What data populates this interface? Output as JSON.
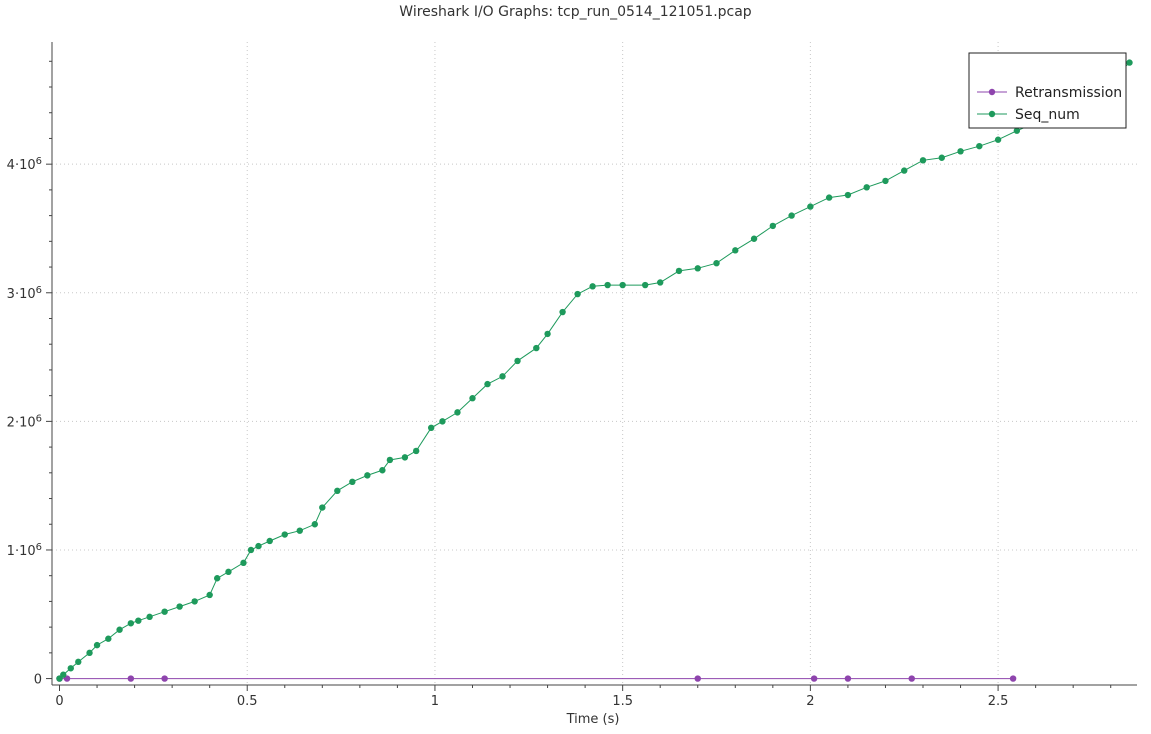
{
  "chart_data": {
    "type": "line",
    "title": "Wireshark I/O Graphs: tcp_run_0514_121051.pcap",
    "xlabel": "Time (s)",
    "ylabel": "",
    "xlim": [
      -0.02,
      2.87
    ],
    "ylim": [
      -50000,
      4950000
    ],
    "x_ticks": [
      0,
      0.5,
      1,
      1.5,
      2,
      2.5
    ],
    "x_tick_labels": [
      "0",
      "0.5",
      "1",
      "1.5",
      "2",
      "2.5"
    ],
    "y_ticks": [
      0,
      1000000,
      2000000,
      3000000,
      4000000
    ],
    "y_tick_labels": [
      {
        "base": "0",
        "exp": ""
      },
      {
        "base": "1·10",
        "exp": "6"
      },
      {
        "base": "2·10",
        "exp": "6"
      },
      {
        "base": "3·10",
        "exp": "6"
      },
      {
        "base": "4·10",
        "exp": "6"
      }
    ],
    "grid": true,
    "legend_position": "top-right",
    "series": [
      {
        "name": "Retransmission",
        "color": "#8e44ad",
        "x": [
          0.0,
          0.02,
          0.19,
          0.28,
          1.7,
          2.01,
          2.1,
          2.27,
          2.54
        ],
        "y": [
          0,
          0,
          0,
          0,
          0,
          0,
          0,
          0,
          0
        ]
      },
      {
        "name": "Seq_num",
        "color": "#1e9a5c",
        "x": [
          0.0,
          0.01,
          0.03,
          0.05,
          0.08,
          0.1,
          0.13,
          0.16,
          0.19,
          0.21,
          0.24,
          0.28,
          0.32,
          0.36,
          0.4,
          0.42,
          0.45,
          0.49,
          0.51,
          0.53,
          0.56,
          0.6,
          0.64,
          0.68,
          0.7,
          0.74,
          0.78,
          0.82,
          0.86,
          0.88,
          0.92,
          0.95,
          0.99,
          1.02,
          1.06,
          1.1,
          1.14,
          1.18,
          1.22,
          1.27,
          1.3,
          1.34,
          1.38,
          1.42,
          1.46,
          1.5,
          1.56,
          1.6,
          1.65,
          1.7,
          1.75,
          1.8,
          1.85,
          1.9,
          1.95,
          2.0,
          2.05,
          2.1,
          2.15,
          2.2,
          2.25,
          2.3,
          2.35,
          2.4,
          2.45,
          2.5,
          2.55,
          2.6,
          2.65,
          2.7,
          2.75,
          2.8,
          2.85
        ],
        "y": [
          0,
          30000,
          80000,
          130000,
          200000,
          260000,
          310000,
          380000,
          430000,
          450000,
          480000,
          520000,
          560000,
          600000,
          650000,
          780000,
          830000,
          900000,
          1000000,
          1030000,
          1070000,
          1120000,
          1150000,
          1200000,
          1330000,
          1460000,
          1530000,
          1580000,
          1620000,
          1700000,
          1720000,
          1770000,
          1950000,
          2000000,
          2070000,
          2180000,
          2290000,
          2350000,
          2470000,
          2570000,
          2680000,
          2850000,
          2990000,
          3050000,
          3060000,
          3060000,
          3060000,
          3080000,
          3170000,
          3190000,
          3230000,
          3330000,
          3420000,
          3520000,
          3600000,
          3670000,
          3740000,
          3760000,
          3820000,
          3870000,
          3950000,
          4030000,
          4050000,
          4100000,
          4140000,
          4190000,
          4260000,
          4320000,
          4370000,
          4430000,
          4530000,
          4650000,
          4790000
        ]
      }
    ]
  }
}
